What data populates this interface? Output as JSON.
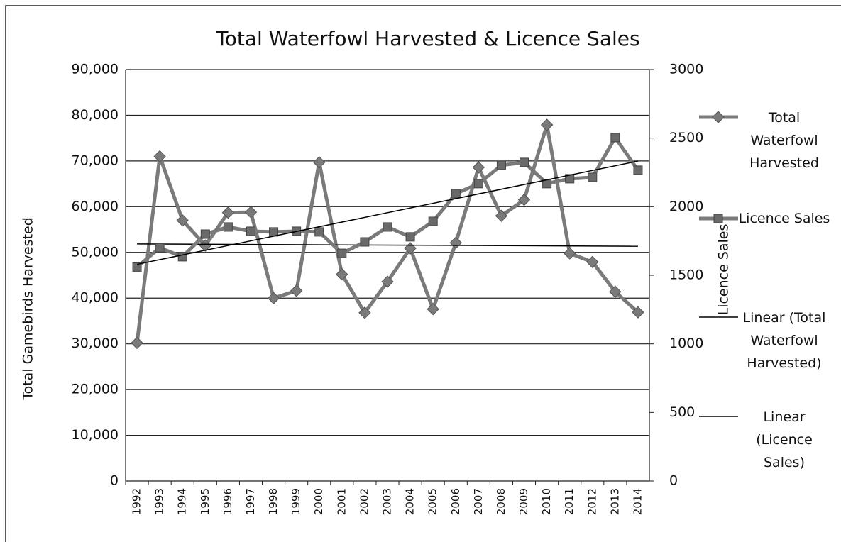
{
  "chart_data": {
    "type": "line",
    "title": "Total Waterfowl Harvested & Licence Sales",
    "y_label": "Total Gamebirds Harvested",
    "y2_label": "Licence Sales",
    "categories": [
      "1992",
      "1993",
      "1994",
      "1995",
      "1996",
      "1997",
      "1998",
      "1999",
      "2000",
      "2001",
      "2002",
      "2003",
      "2004",
      "2005",
      "2006",
      "2007",
      "2008",
      "2009",
      "2010",
      "2011",
      "2012",
      "2013",
      "2014"
    ],
    "series": [
      {
        "name": "Total Waterfowl Harvested",
        "color": "#7a7a7a",
        "marker": "diamond",
        "trendline": "Linear (Total Waterfowl Harvested)",
        "values": [
          30200,
          71000,
          57000,
          51500,
          58700,
          58800,
          40000,
          41600,
          69700,
          45200,
          36800,
          43600,
          50900,
          37600,
          52100,
          68600,
          58000,
          61500,
          77900,
          49800,
          47900,
          41400,
          36900
        ]
      },
      {
        "name": "Licence Sales",
        "color": "#7a7a7a",
        "marker": "square",
        "axis": "y2",
        "trendline": "Linear (Licence Sales)",
        "values": [
          1560,
          1700,
          1635,
          1800,
          1852,
          1821,
          1816,
          1821,
          1816,
          1660,
          1743,
          1852,
          1780,
          1893,
          2095,
          2168,
          2302,
          2323,
          2168,
          2204,
          2214,
          2504,
          2266
        ]
      }
    ],
    "ylim": [
      0,
      90000
    ],
    "yticks": [
      0,
      {
        "value": 10000,
        "label": "10,000"
      },
      {
        "value": 20000,
        "label": "20,000"
      },
      {
        "value": 30000,
        "label": "30,000"
      },
      {
        "value": 40000,
        "label": "40,000"
      },
      {
        "value": 50000,
        "label": "50,000"
      },
      {
        "value": 60000,
        "label": "60,000"
      },
      {
        "value": 70000,
        "label": "70,000"
      },
      {
        "value": 80000,
        "label": "80,000"
      },
      {
        "value": 90000,
        "label": "90,000"
      }
    ],
    "y2lim": [
      0,
      3000
    ],
    "y2ticks": [
      0,
      500,
      1000,
      1500,
      2000,
      2500,
      3000
    ],
    "grid": true
  }
}
